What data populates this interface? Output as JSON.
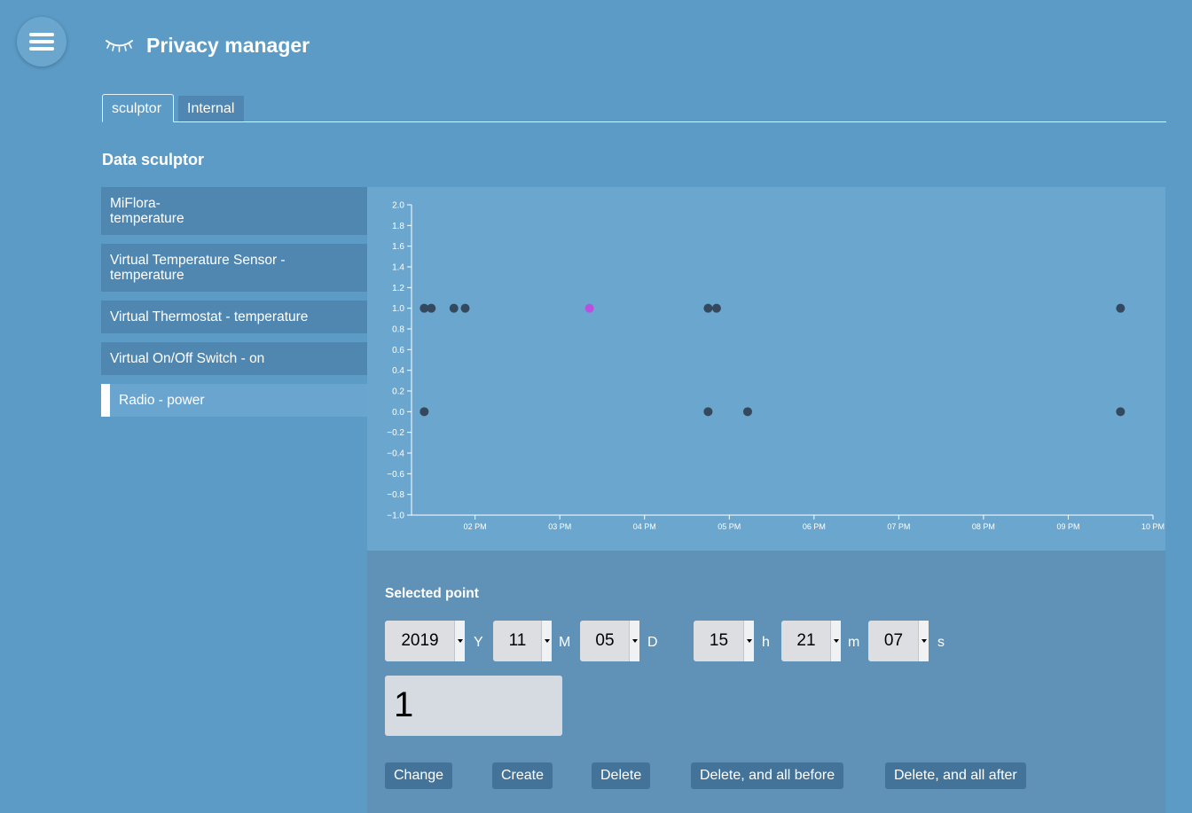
{
  "app": {
    "title": "Privacy manager"
  },
  "tabs": [
    {
      "label": "sculptor"
    },
    {
      "label": "Internal"
    }
  ],
  "section_title": "Data sculptor",
  "sensors": [
    {
      "label_line1": "MiFlora-",
      "label_line2": "temperature"
    },
    {
      "label_line1": "Virtual Temperature Sensor -",
      "label_line2": "temperature"
    },
    {
      "label_line1": "Virtual Thermostat - temperature",
      "label_line2": ""
    },
    {
      "label_line1": "Virtual On/Off Switch - on",
      "label_line2": ""
    },
    {
      "label_line1": "Radio - power",
      "label_line2": "",
      "active": true
    }
  ],
  "chart_data": {
    "type": "scatter",
    "y_ticks": [
      "2.0",
      "1.8",
      "1.6",
      "1.4",
      "1.2",
      "1.0",
      "0.8",
      "0.6",
      "0.4",
      "0.2",
      "0.0",
      "−0.2",
      "−0.4",
      "−0.6",
      "−0.8",
      "−1.0"
    ],
    "ylim": [
      -1.0,
      2.0
    ],
    "x_ticks": [
      "02 PM",
      "03 PM",
      "04 PM",
      "05 PM",
      "06 PM",
      "07 PM",
      "08 PM",
      "09 PM",
      "10 PM"
    ],
    "xlim": [
      "13:15",
      "22:00"
    ],
    "points": [
      {
        "x": "13:24",
        "y": 1
      },
      {
        "x": "13:29",
        "y": 1
      },
      {
        "x": "13:45",
        "y": 1
      },
      {
        "x": "13:53",
        "y": 1
      },
      {
        "x": "15:21",
        "y": 1,
        "selected": true
      },
      {
        "x": "16:45",
        "y": 1
      },
      {
        "x": "16:51",
        "y": 1
      },
      {
        "x": "21:37",
        "y": 1
      },
      {
        "x": "13:24",
        "y": 0
      },
      {
        "x": "16:45",
        "y": 0
      },
      {
        "x": "17:13",
        "y": 0
      },
      {
        "x": "21:37",
        "y": 0
      }
    ],
    "point_color": "#34495e",
    "selected_color": "#bb4fe0"
  },
  "selected_point": {
    "title": "Selected point",
    "year": "2019",
    "year_unit": "Y",
    "month": "11",
    "month_unit": "M",
    "day": "05",
    "day_unit": "D",
    "hour": "15",
    "hour_unit": "h",
    "minute": "21",
    "minute_unit": "m",
    "second": "07",
    "second_unit": "s",
    "value": "1"
  },
  "actions": {
    "change": "Change",
    "create": "Create",
    "delete": "Delete",
    "delete_before": "Delete, and all before",
    "delete_after": "Delete, and all after"
  }
}
